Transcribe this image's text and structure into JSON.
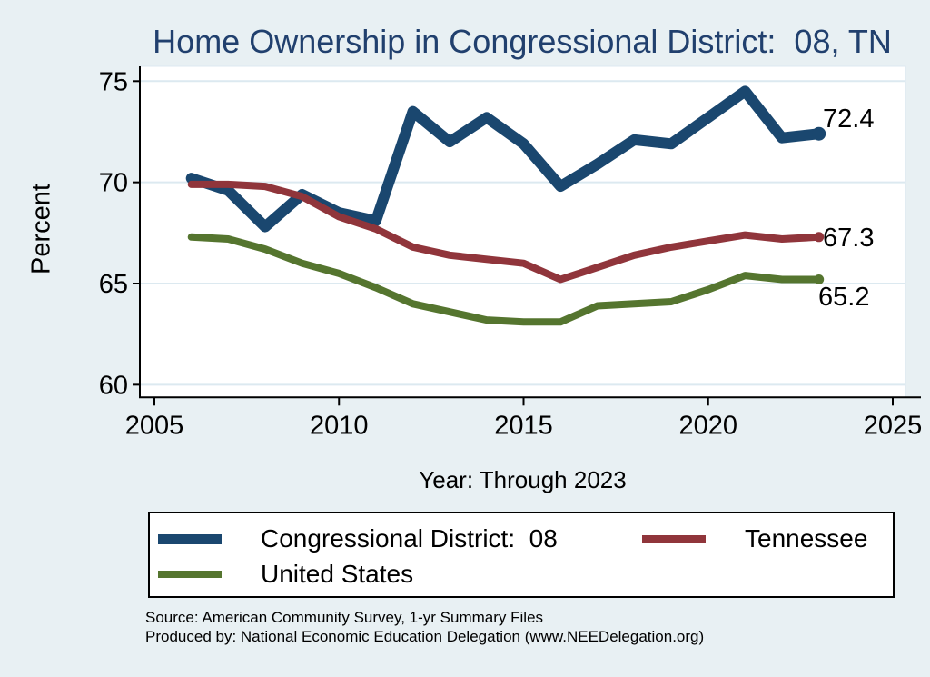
{
  "title": "Home Ownership in Congressional District:  08, TN",
  "chart_data": {
    "type": "line",
    "title": "Home Ownership in Congressional District:  08, TN",
    "xlabel": "Year: Through 2023",
    "ylabel": "Percent",
    "xticks": [
      2005,
      2010,
      2015,
      2020,
      2025
    ],
    "yticks": [
      60,
      65,
      70,
      75
    ],
    "xlim": [
      2004.6,
      2025.35
    ],
    "ylim": [
      59.4,
      75.7
    ],
    "grid": true,
    "legend_position": "bottom",
    "x": [
      2006,
      2007,
      2008,
      2009,
      2010,
      2011,
      2012,
      2013,
      2014,
      2015,
      2016,
      2017,
      2018,
      2019,
      2020,
      2021,
      2022,
      2023
    ],
    "series": [
      {
        "name": "Congressional District:  08",
        "slug": "cd08",
        "color": "#1a476f",
        "width": 12,
        "values": [
          70.2,
          69.6,
          67.8,
          69.4,
          68.5,
          68.1,
          73.5,
          72.0,
          73.2,
          71.9,
          69.8,
          70.9,
          72.1,
          71.9,
          73.2,
          74.5,
          72.2,
          72.4
        ],
        "end_label": "72.4"
      },
      {
        "name": "Tennessee",
        "slug": "tennessee",
        "color": "#90353b",
        "width": 8,
        "values": [
          69.9,
          69.9,
          69.8,
          69.3,
          68.3,
          67.7,
          66.8,
          66.4,
          66.2,
          66.0,
          65.2,
          65.8,
          66.4,
          66.8,
          67.1,
          67.4,
          67.2,
          67.3
        ],
        "end_label": "67.3"
      },
      {
        "name": "United States",
        "slug": "united-states",
        "color": "#55752f",
        "width": 8,
        "values": [
          67.3,
          67.2,
          66.7,
          66.0,
          65.5,
          64.8,
          64.0,
          63.6,
          63.2,
          63.1,
          63.1,
          63.9,
          64.0,
          64.1,
          64.7,
          65.4,
          65.2,
          65.2
        ],
        "end_label": "65.2"
      }
    ]
  },
  "footer": {
    "source": "Source: American Community Survey, 1-yr Summary Files",
    "produced_by": "Produced by: National Economic Education Delegation (www.NEEDelegation.org)"
  },
  "colors": {
    "background": "#e8f0f3",
    "plot_background": "#ffffff",
    "gridline": "#dce9f0",
    "axis": "#000000",
    "title": "#21406e",
    "cd08_line": "#1a476f",
    "tennessee_line": "#90353b",
    "united_states_line": "#55752f"
  }
}
